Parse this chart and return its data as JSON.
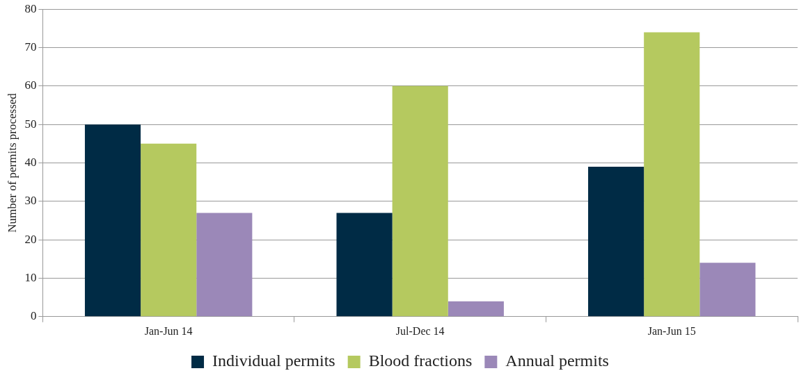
{
  "chart_data": {
    "type": "bar",
    "ylabel": "Number of permits processed",
    "categories": [
      "Jan-Jun 14",
      "Jul-Dec 14",
      "Jan-Jun 15"
    ],
    "series": [
      {
        "name": "Individual permits",
        "color": "#002b45",
        "values": [
          50,
          27,
          39
        ]
      },
      {
        "name": "Blood fractions",
        "color": "#b5c95f",
        "values": [
          45,
          60,
          74
        ]
      },
      {
        "name": "Annual permits",
        "color": "#9b88b8",
        "values": [
          27,
          4,
          14
        ]
      }
    ],
    "ylim": [
      0,
      80
    ],
    "yticks": [
      0,
      10,
      20,
      30,
      40,
      50,
      60,
      70,
      80
    ],
    "grid": "y",
    "legend": "bottom"
  }
}
